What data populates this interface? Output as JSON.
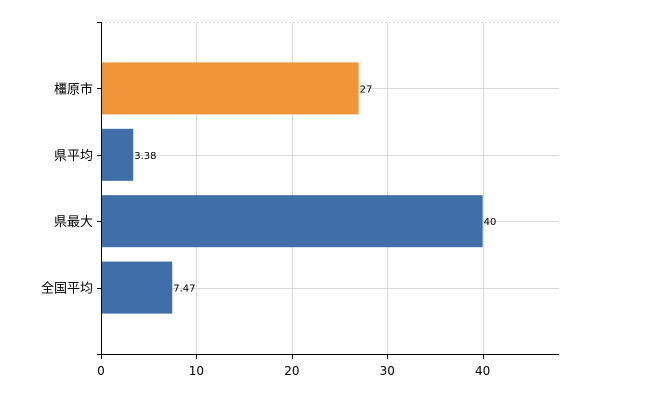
{
  "chart_data": {
    "type": "bar",
    "orientation": "horizontal",
    "categories": [
      "橿原市",
      "県平均",
      "県最大",
      "全国平均"
    ],
    "values": [
      27,
      3.38,
      40,
      7.47
    ],
    "value_labels": [
      "27",
      "3.38",
      "40",
      "7.47"
    ],
    "bar_colors": [
      "#f0953a",
      "#3f6ea8",
      "#3f6ea8",
      "#3f6ea8"
    ],
    "xlim": [
      0,
      48
    ],
    "x_ticks": [
      0,
      10,
      20,
      30,
      40
    ],
    "title": "",
    "xlabel": "",
    "ylabel": "",
    "grid": true,
    "legend": "none"
  }
}
